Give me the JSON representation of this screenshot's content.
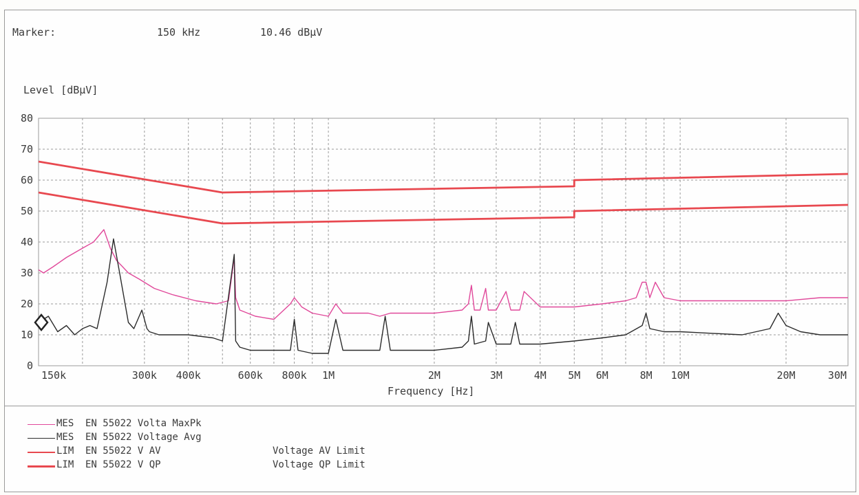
{
  "marker": {
    "label": "Marker:",
    "frequency": "150 kHz",
    "level": "10.46 dBµV"
  },
  "colors": {
    "maxpk": "#e0489a",
    "avg": "#2b2b2b",
    "limit": "#e8484f",
    "grid": "#9a9a9a"
  },
  "legend": [
    {
      "type": "MES",
      "name": "EN 55022 Volta MaxPk",
      "desc": "",
      "color": "#e0489a",
      "weight": 1.5
    },
    {
      "type": "MES",
      "name": "EN 55022 Voltage Avg",
      "desc": "",
      "color": "#2b2b2b",
      "weight": 1.5
    },
    {
      "type": "LIM",
      "name": "EN 55022 V AV",
      "desc": "Voltage AV Limit",
      "color": "#e8484f",
      "weight": 2.5
    },
    {
      "type": "LIM",
      "name": "EN 55022 V QP",
      "desc": "Voltage QP Limit",
      "color": "#e8484f",
      "weight": 3
    }
  ],
  "chart_data": {
    "type": "line",
    "xlabel": "Frequency [Hz]",
    "ylabel": "Level [dBµV]",
    "xscale": "log",
    "xlim": [
      150000,
      30000000
    ],
    "ylim": [
      0,
      80
    ],
    "grid": true,
    "yticks": [
      0,
      10,
      20,
      30,
      40,
      50,
      60,
      70,
      80
    ],
    "xticks": [
      {
        "value": 150000,
        "label": "150k"
      },
      {
        "value": 300000,
        "label": "300k"
      },
      {
        "value": 400000,
        "label": "400k"
      },
      {
        "value": 600000,
        "label": "600k"
      },
      {
        "value": 800000,
        "label": "800k"
      },
      {
        "value": 1000000,
        "label": "1M"
      },
      {
        "value": 2000000,
        "label": "2M"
      },
      {
        "value": 3000000,
        "label": "3M"
      },
      {
        "value": 4000000,
        "label": "4M"
      },
      {
        "value": 5000000,
        "label": "5M"
      },
      {
        "value": 6000000,
        "label": "6M"
      },
      {
        "value": 8000000,
        "label": "8M"
      },
      {
        "value": 10000000,
        "label": "10M"
      },
      {
        "value": 20000000,
        "label": "20M"
      },
      {
        "value": 30000000,
        "label": "30M"
      }
    ],
    "series": [
      {
        "name": "EN 55022 V QP",
        "x": [
          150000,
          500000,
          500000,
          5000000,
          5000000,
          30000000
        ],
        "y": [
          66,
          56,
          56,
          58,
          60,
          62
        ]
      },
      {
        "name": "EN 55022 V AV",
        "x": [
          150000,
          500000,
          500000,
          5000000,
          5000000,
          30000000
        ],
        "y": [
          56,
          46,
          46,
          48,
          50,
          52
        ]
      },
      {
        "name": "EN 55022 Volta MaxPk",
        "x": [
          150000,
          155000,
          165000,
          180000,
          200000,
          215000,
          230000,
          240000,
          250000,
          260000,
          270000,
          290000,
          320000,
          360000,
          420000,
          480000,
          520000,
          540000,
          545000,
          560000,
          620000,
          700000,
          780000,
          800000,
          840000,
          900000,
          1000000,
          1050000,
          1100000,
          1300000,
          1400000,
          1500000,
          2000000,
          2400000,
          2500000,
          2550000,
          2600000,
          2700000,
          2800000,
          2850000,
          3000000,
          3200000,
          3300000,
          3500000,
          3600000,
          4000000,
          5000000,
          6000000,
          7000000,
          7500000,
          7800000,
          8000000,
          8200000,
          8500000,
          9000000,
          10000000,
          15000000,
          20000000,
          25000000,
          30000000
        ],
        "y": [
          31,
          30,
          32,
          35,
          38,
          40,
          44,
          38,
          34,
          32,
          30,
          28,
          25,
          23,
          21,
          20,
          21,
          35,
          22,
          18,
          16,
          15,
          20,
          22,
          19,
          17,
          16,
          20,
          17,
          17,
          16,
          17,
          17,
          18,
          20,
          26,
          18,
          18,
          25,
          18,
          18,
          24,
          18,
          18,
          24,
          19,
          19,
          20,
          21,
          22,
          27,
          27,
          22,
          27,
          22,
          21,
          21,
          21,
          22,
          22
        ]
      },
      {
        "name": "EN 55022 Voltage Avg",
        "x": [
          150000,
          160000,
          170000,
          180000,
          190000,
          200000,
          210000,
          220000,
          235000,
          245000,
          255000,
          270000,
          280000,
          295000,
          305000,
          310000,
          330000,
          400000,
          470000,
          500000,
          540000,
          545000,
          560000,
          600000,
          700000,
          780000,
          800000,
          820000,
          900000,
          1000000,
          1050000,
          1100000,
          1300000,
          1400000,
          1450000,
          1500000,
          2000000,
          2400000,
          2500000,
          2550000,
          2600000,
          2800000,
          2850000,
          3000000,
          3300000,
          3400000,
          3500000,
          3600000,
          3800000,
          4000000,
          5000000,
          6000000,
          7000000,
          7800000,
          8000000,
          8200000,
          9000000,
          10000000,
          15000000,
          18000000,
          19000000,
          20000000,
          22000000,
          25000000,
          30000000
        ],
        "y": [
          14,
          16,
          11,
          13,
          10,
          12,
          13,
          12,
          27,
          41,
          30,
          14,
          12,
          18,
          12,
          11,
          10,
          10,
          9,
          8,
          36,
          8,
          6,
          5,
          5,
          5,
          15,
          5,
          4,
          4,
          15,
          5,
          5,
          5,
          16,
          5,
          5,
          6,
          8,
          16,
          7,
          8,
          14,
          7,
          7,
          14,
          7,
          7,
          7,
          7,
          8,
          9,
          10,
          13,
          17,
          12,
          11,
          11,
          10,
          12,
          17,
          13,
          11,
          10,
          10
        ]
      }
    ]
  }
}
